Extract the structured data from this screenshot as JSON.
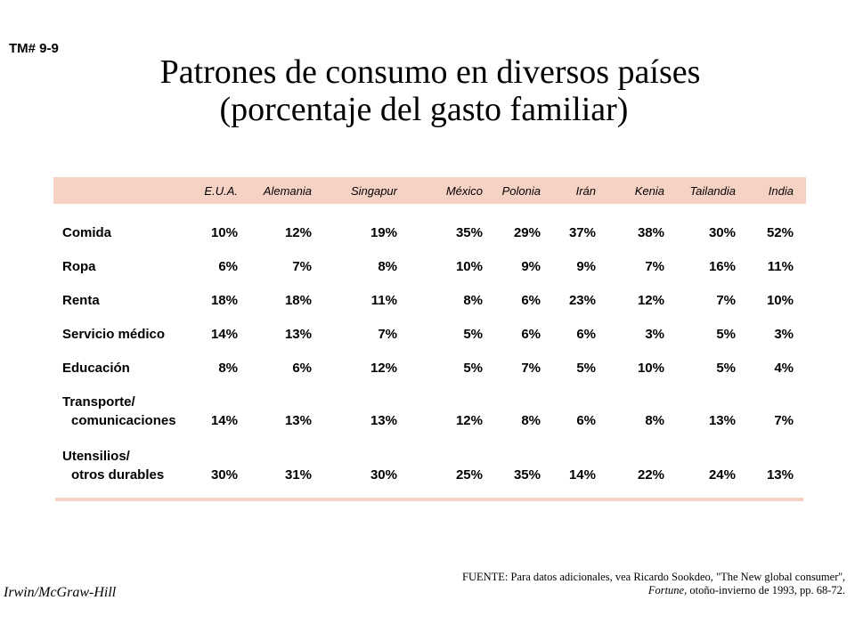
{
  "tag": "TM# 9-9",
  "title": {
    "line1": "Patrones de consumo en diversos países",
    "line2": "(porcentaje del gasto familiar)"
  },
  "table": {
    "columns": [
      "E.U.A.",
      "Alemania",
      "Singapur",
      "México",
      "Polonia",
      "Irán",
      "Kenia",
      "Tailandia",
      "India"
    ],
    "rows": [
      {
        "label1": "Comida",
        "label2": "",
        "values": [
          "10%",
          "12%",
          "19%",
          "35%",
          "29%",
          "37%",
          "38%",
          "30%",
          "52%"
        ]
      },
      {
        "label1": "Ropa",
        "label2": "",
        "values": [
          "6%",
          "7%",
          "8%",
          "10%",
          "9%",
          "9%",
          "7%",
          "16%",
          "11%"
        ]
      },
      {
        "label1": "Renta",
        "label2": "",
        "values": [
          "18%",
          "18%",
          "11%",
          "8%",
          "6%",
          "23%",
          "12%",
          "7%",
          "10%"
        ]
      },
      {
        "label1": "Servicio médico",
        "label2": "",
        "values": [
          "14%",
          "13%",
          "7%",
          "5%",
          "6%",
          "6%",
          "3%",
          "5%",
          "3%"
        ]
      },
      {
        "label1": "Educación",
        "label2": "",
        "values": [
          "8%",
          "6%",
          "12%",
          "5%",
          "7%",
          "5%",
          "10%",
          "5%",
          "4%"
        ]
      },
      {
        "label1": "Transporte/",
        "label2": "comunicaciones",
        "values": [
          "14%",
          "13%",
          "13%",
          "12%",
          "8%",
          "6%",
          "8%",
          "13%",
          "7%"
        ]
      },
      {
        "label1": "Utensilios/",
        "label2": "otros durables",
        "values": [
          "30%",
          "31%",
          "30%",
          "25%",
          "35%",
          "14%",
          "22%",
          "24%",
          "13%"
        ]
      }
    ]
  },
  "publisher": "Irwin/McGraw-Hill",
  "source": {
    "prefix": "FUENTE: Para datos adicionales, vea Ricardo Sookdeo, \"The New global consumer'', ",
    "journal": "Fortune",
    "suffix": ", otoño-invierno de 1993, pp. 68-72."
  },
  "colors": {
    "header_band": "#f6d2c4",
    "text": "#000000",
    "background": "#ffffff"
  }
}
